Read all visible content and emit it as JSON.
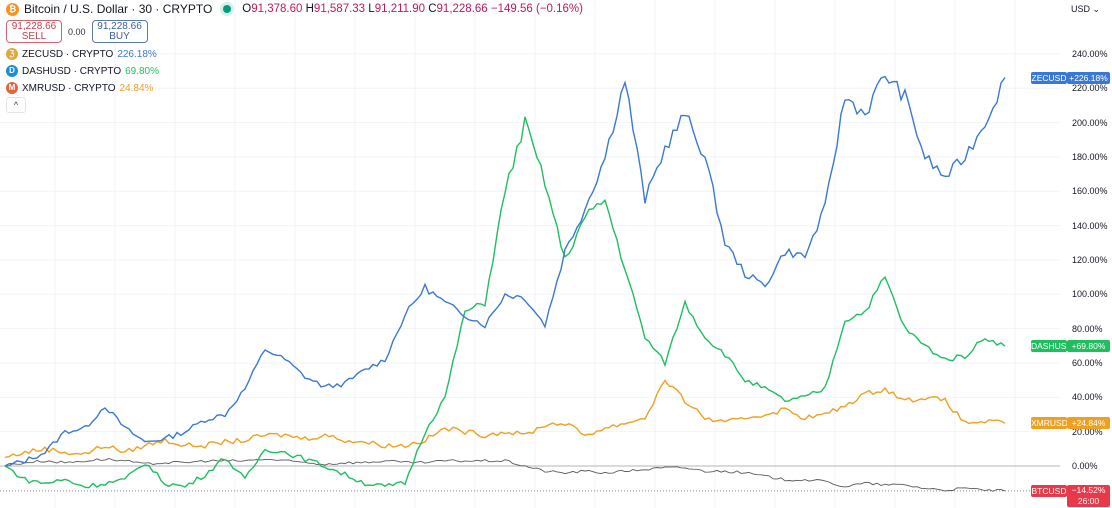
{
  "header": {
    "title": "Bitcoin / U.S. Dollar · 30 · CRYPTO",
    "open": "91,378.60",
    "high": "91,587.33",
    "low": "91,211.90",
    "close": "91,228.66",
    "change": "−149.56 (−0.16%)",
    "o": "O",
    "h": "H",
    "l": "L",
    "c": "C"
  },
  "trade": {
    "sell_price": "91,228.66",
    "sell_label": "SELL",
    "spread": "0.00",
    "buy_price": "91,228.66",
    "buy_label": "BUY"
  },
  "legend": [
    {
      "symbol": "ZECUSD · CRYPTO",
      "value": "226.18%",
      "color": "#3a78d6",
      "icon": "zcash-icon",
      "glyph": "ℨ",
      "icon_color": "#e0a83a"
    },
    {
      "symbol": "DASHUSD · CRYPTO",
      "value": "69.80%",
      "color": "#1fbf5f",
      "icon": "dash-icon",
      "glyph": "D",
      "icon_color": "#1c8ed6"
    },
    {
      "symbol": "XMRUSD · CRYPTO",
      "value": "24.84%",
      "color": "#f0a020",
      "icon": "monero-icon",
      "glyph": "M",
      "icon_color": "#e0663a"
    }
  ],
  "collapse_glyph": "^",
  "currency": "USD ⌄",
  "chart_data": {
    "type": "line",
    "ylim": [
      -20,
      250
    ],
    "yticks": [
      "240.00%",
      "220.00%",
      "200.00%",
      "180.00%",
      "160.00%",
      "140.00%",
      "120.00%",
      "100.00%",
      "80.00%",
      "60.00%",
      "40.00%",
      "20.00%",
      "0.00%"
    ],
    "ytick_values": [
      240,
      220,
      200,
      180,
      160,
      140,
      120,
      100,
      80,
      60,
      40,
      20,
      0
    ],
    "grid": true,
    "series": [
      {
        "name": "ZECUSD",
        "color": "#3a78d6",
        "last_label": "+226.18%",
        "values": [
          0,
          3,
          8,
          20,
          22,
          35,
          22,
          14,
          16,
          20,
          27,
          30,
          45,
          68,
          62,
          52,
          46,
          48,
          56,
          62,
          88,
          104,
          95,
          88,
          82,
          100,
          98,
          82,
          125,
          150,
          180,
          225,
          155,
          185,
          205,
          180,
          130,
          112,
          105,
          125,
          122,
          150,
          215,
          205,
          228,
          215,
          180,
          168,
          180,
          200,
          226.18
        ]
      },
      {
        "name": "DASHUSD",
        "color": "#1fbf5f",
        "last_label": "+69.80%",
        "values": [
          0,
          -8,
          -10,
          -8,
          -12,
          -10,
          -8,
          2,
          -10,
          -12,
          -5,
          5,
          -8,
          10,
          8,
          4,
          0,
          -5,
          -10,
          -12,
          -10,
          20,
          40,
          90,
          95,
          160,
          200,
          165,
          120,
          145,
          155,
          115,
          75,
          60,
          95,
          75,
          65,
          50,
          45,
          38,
          40,
          45,
          85,
          90,
          110,
          80,
          70,
          62,
          64,
          75,
          69.8
        ]
      },
      {
        "name": "XMRUSD",
        "color": "#f0a020",
        "last_label": "+24.84%",
        "values": [
          5,
          8,
          10,
          8,
          7,
          12,
          8,
          12,
          15,
          12,
          12,
          14,
          15,
          18,
          18,
          16,
          18,
          15,
          14,
          12,
          12,
          15,
          22,
          20,
          18,
          20,
          18,
          24,
          25,
          18,
          22,
          25,
          28,
          50,
          38,
          28,
          25,
          28,
          30,
          33,
          28,
          30,
          35,
          42,
          45,
          38,
          40,
          38,
          25,
          26,
          24.84
        ]
      },
      {
        "name": "BTCUSD",
        "color": "#5a5a5a",
        "last_label": "−14.52%",
        "countdown": "26:00",
        "values": [
          0,
          2,
          3,
          2,
          3,
          4,
          3,
          1,
          2,
          2,
          3,
          3,
          3,
          4,
          3,
          2,
          1,
          2,
          2,
          3,
          2,
          2,
          3,
          3,
          3,
          3,
          0,
          -3,
          -4,
          -3,
          -4,
          -3,
          -2,
          -1,
          -1,
          -3,
          -3,
          -4,
          -6,
          -8,
          -8,
          -9,
          -12,
          -10,
          -11,
          -11,
          -13,
          -14,
          -13,
          -14,
          -14.52
        ]
      }
    ],
    "btc_tag_color": "#e8394a"
  }
}
